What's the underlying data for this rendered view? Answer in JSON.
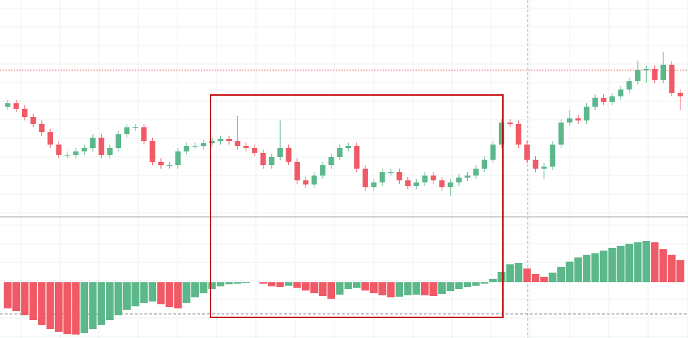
{
  "chart_data": [
    {
      "type": "candlestick",
      "open": [
        345,
        350,
        342,
        330,
        320,
        308,
        290,
        275,
        275,
        280,
        285,
        300,
        275,
        285,
        305,
        315,
        315,
        295,
        265,
        260,
        260,
        280,
        288,
        288,
        292,
        295,
        298,
        295,
        288,
        285,
        278,
        260,
        272,
        285,
        265,
        238,
        232,
        245,
        260,
        272,
        285,
        288,
        255,
        228,
        235,
        250,
        250,
        238,
        230,
        235,
        245,
        238,
        228,
        235,
        242,
        245,
        255,
        268,
        290,
        322,
        320,
        290,
        268,
        255,
        258,
        290,
        322,
        328,
        325,
        345,
        358,
        352,
        360,
        370,
        382,
        398,
        400,
        384,
        406,
        365
      ],
      "high": [
        355,
        355,
        347,
        335,
        325,
        313,
        295,
        280,
        285,
        290,
        305,
        305,
        290,
        310,
        320,
        320,
        320,
        300,
        270,
        265,
        285,
        293,
        293,
        297,
        300,
        303,
        303,
        332,
        293,
        290,
        283,
        277,
        325,
        290,
        270,
        243,
        250,
        265,
        277,
        290,
        293,
        293,
        260,
        240,
        255,
        255,
        255,
        243,
        240,
        250,
        250,
        243,
        240,
        247,
        250,
        260,
        273,
        295,
        327,
        327,
        325,
        295,
        273,
        263,
        295,
        327,
        340,
        333,
        350,
        363,
        363,
        365,
        375,
        387,
        412,
        405,
        405,
        425,
        411,
        370
      ],
      "low": [
        340,
        337,
        325,
        315,
        303,
        285,
        270,
        270,
        270,
        275,
        280,
        270,
        270,
        280,
        300,
        310,
        290,
        260,
        255,
        255,
        255,
        275,
        283,
        283,
        287,
        290,
        290,
        283,
        280,
        273,
        255,
        255,
        267,
        260,
        233,
        227,
        227,
        240,
        255,
        267,
        280,
        250,
        223,
        223,
        230,
        245,
        233,
        225,
        225,
        230,
        233,
        223,
        215,
        230,
        237,
        240,
        250,
        263,
        285,
        315,
        285,
        263,
        250,
        240,
        253,
        285,
        317,
        320,
        320,
        340,
        347,
        347,
        355,
        365,
        377,
        380,
        379,
        379,
        360,
        340
      ],
      "close": [
        350,
        342,
        330,
        320,
        308,
        290,
        275,
        275,
        280,
        285,
        300,
        275,
        285,
        305,
        315,
        315,
        295,
        265,
        260,
        260,
        280,
        288,
        288,
        292,
        295,
        298,
        295,
        288,
        285,
        278,
        260,
        272,
        285,
        265,
        238,
        232,
        245,
        260,
        272,
        285,
        288,
        255,
        228,
        235,
        250,
        250,
        238,
        230,
        235,
        245,
        238,
        228,
        235,
        242,
        245,
        255,
        268,
        290,
        322,
        320,
        290,
        268,
        255,
        258,
        290,
        322,
        328,
        325,
        345,
        358,
        352,
        360,
        370,
        382,
        398,
        400,
        384,
        406,
        365,
        360
      ],
      "up_color": "#5cb88a",
      "down_color": "#f05a66",
      "ylim": [
        185,
        500
      ],
      "grid": true
    },
    {
      "type": "bar",
      "values": [
        -38,
        -42,
        -48,
        -55,
        -62,
        -68,
        -72,
        -75,
        -76,
        -74,
        -68,
        -62,
        -55,
        -48,
        -40,
        -35,
        -30,
        -28,
        -32,
        -36,
        -38,
        -30,
        -22,
        -16,
        -10,
        -6,
        -3,
        -2,
        -1,
        0,
        -2,
        -6,
        -7,
        -5,
        -8,
        -12,
        -16,
        -20,
        -24,
        -18,
        -10,
        -8,
        -12,
        -16,
        -19,
        -22,
        -21,
        -19,
        -18,
        -19,
        -20,
        -17,
        -13,
        -10,
        -7,
        -5,
        -2,
        5,
        15,
        26,
        28,
        20,
        12,
        8,
        14,
        22,
        30,
        36,
        40,
        42,
        46,
        50,
        53,
        56,
        58,
        60,
        58,
        48,
        40,
        32
      ],
      "up_color": "#5cb88a",
      "down_color": "#f05a66",
      "ylim": [
        -81,
        95
      ],
      "grid": true
    }
  ]
}
